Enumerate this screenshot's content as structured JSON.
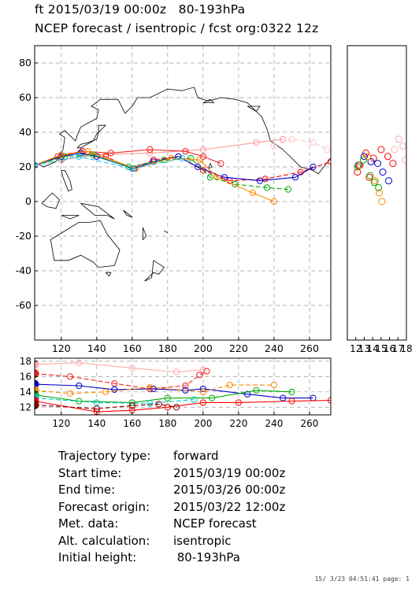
{
  "header": {
    "line1": "ft 2015/03/19 00:00z   80-193hPa",
    "line2": "NCEP forecast / isentropic / fcst org:0322 12z"
  },
  "info": [
    {
      "key": "Trajectory type:",
      "value": "forward"
    },
    {
      "key": "Start time:",
      "value": "2015/03/19 00:00z"
    },
    {
      "key": "End time:",
      "value": "2015/03/26 00:00z"
    },
    {
      "key": "Forecast origin:",
      "value": "2015/03/22 12:00z"
    },
    {
      "key": "Met. data:",
      "value": "NCEP forecast"
    },
    {
      "key": "Alt. calculation:",
      "value": "isentropic"
    },
    {
      "key": "Initial height:",
      "value": " 80-193hPa"
    }
  ],
  "footer": "15/ 3/23 04:51:41 page: 1",
  "chart_data": [
    {
      "type": "line",
      "panel": "map",
      "xlim": [
        105,
        272
      ],
      "ylim": [
        -80,
        90
      ],
      "x_ticks": [
        120,
        140,
        160,
        180,
        200,
        220,
        240,
        260
      ],
      "y_ticks": [
        80,
        60,
        40,
        20,
        0,
        -20,
        -40,
        -60
      ],
      "grid": true,
      "series": [
        {
          "color": "#ff9999",
          "x": [
            105,
            120,
            140,
            170,
            200,
            230,
            245
          ],
          "y": [
            21,
            24,
            27,
            28,
            30,
            34,
            36
          ]
        },
        {
          "color": "#ffc8c8",
          "x": [
            240,
            250,
            262,
            270
          ],
          "y": [
            32,
            36,
            34,
            30
          ]
        },
        {
          "color": "#ee2222",
          "x": [
            105,
            118,
            132,
            148,
            170,
            190,
            200,
            210
          ],
          "y": [
            21,
            26,
            29,
            28,
            30,
            29,
            26,
            22
          ]
        },
        {
          "color": "#ff0000",
          "x": [
            105,
            120,
            132,
            145,
            160,
            172,
            186,
            200,
            215,
            235,
            255,
            272
          ],
          "y": [
            21,
            27,
            29,
            26,
            19,
            24,
            26,
            18,
            12,
            13,
            17,
            23
          ]
        },
        {
          "color": "#0000cc",
          "x": [
            105,
            120,
            131,
            140,
            161,
            172,
            186,
            197,
            212,
            232,
            252,
            262
          ],
          "y": [
            21,
            26,
            28,
            26,
            19,
            23,
            26,
            20,
            14,
            12,
            14,
            20
          ]
        },
        {
          "color": "#00aa00",
          "x": [
            105,
            122,
            138,
            158,
            178,
            193,
            204,
            218,
            236,
            248
          ],
          "y": [
            21,
            26,
            27,
            20,
            24,
            25,
            14,
            10,
            8,
            7
          ]
        },
        {
          "color": "#ff8800",
          "x": [
            105,
            120,
            135,
            162,
            182,
            198,
            208,
            228,
            240
          ],
          "y": [
            21,
            27,
            29,
            19,
            25,
            24,
            14,
            5,
            0
          ]
        },
        {
          "color": "#00ccff",
          "x": [
            105,
            130,
            160,
            188
          ],
          "y": [
            21,
            26,
            19,
            25
          ]
        }
      ]
    },
    {
      "type": "scatter",
      "panel": "side",
      "xlim": [
        11,
        18
      ],
      "ylim": [
        -80,
        90
      ],
      "x_ticks": [
        12,
        13,
        14,
        15,
        16,
        17,
        18
      ],
      "series": [
        {
          "color": "#ff0000",
          "x": [
            12.5,
            13.2,
            14.1,
            15.0,
            15.8,
            16.4,
            13.6,
            12.2
          ],
          "y": [
            21,
            28,
            25,
            30,
            26,
            22,
            14,
            17
          ]
        },
        {
          "color": "#0000cc",
          "x": [
            12.3,
            13.0,
            13.8,
            14.6,
            15.2,
            15.9
          ],
          "y": [
            21,
            26,
            23,
            22,
            17,
            12
          ]
        },
        {
          "color": "#00aa00",
          "x": [
            12.2,
            12.9,
            13.7,
            14.2,
            14.7
          ],
          "y": [
            20,
            24,
            15,
            11,
            8
          ]
        },
        {
          "color": "#ff8800",
          "x": [
            12.4,
            13.4,
            14.3,
            14.8,
            15.1
          ],
          "y": [
            21,
            26,
            12,
            5,
            0
          ]
        },
        {
          "color": "#ffaaaa",
          "x": [
            16.6,
            17.1,
            17.6,
            17.9
          ],
          "y": [
            30,
            36,
            32,
            24
          ]
        }
      ]
    },
    {
      "type": "line",
      "panel": "height",
      "xlim": [
        105,
        272
      ],
      "ylim": [
        11,
        18.4
      ],
      "x_ticks": [
        120,
        140,
        160,
        180,
        200,
        220,
        240,
        260
      ],
      "y_ticks": [
        12,
        14,
        16,
        18
      ],
      "grid": true,
      "series": [
        {
          "color": "#ffaaaa",
          "x": [
            105,
            130,
            160,
            185,
            200
          ],
          "y": [
            17.6,
            17.8,
            17.1,
            16.6,
            16.9
          ]
        },
        {
          "color": "#ee2222",
          "x": [
            105,
            125,
            150,
            170,
            190,
            198,
            202
          ],
          "y": [
            16.4,
            16.0,
            15.1,
            14.4,
            14.8,
            16.2,
            16.7
          ]
        },
        {
          "color": "#0000cc",
          "x": [
            105,
            130,
            150,
            172,
            190,
            200,
            225,
            245,
            262
          ],
          "y": [
            15.0,
            14.8,
            14.3,
            14.4,
            14.2,
            14.4,
            13.7,
            13.2,
            13.2
          ]
        },
        {
          "color": "#ff8800",
          "x": [
            105,
            125,
            145,
            170,
            200,
            215,
            240
          ],
          "y": [
            14.2,
            13.8,
            14.0,
            14.6,
            14.0,
            14.9,
            14.9
          ]
        },
        {
          "color": "#00aa00",
          "x": [
            105,
            130,
            160,
            180,
            205,
            230,
            250
          ],
          "y": [
            13.6,
            12.8,
            12.6,
            13.2,
            13.2,
            14.2,
            14.0
          ]
        },
        {
          "color": "#00cccc",
          "x": [
            105,
            140,
            170,
            195
          ],
          "y": [
            13.2,
            12.6,
            12.5,
            13.0
          ]
        },
        {
          "color": "#ff0000",
          "x": [
            105,
            140,
            160,
            180,
            200,
            220,
            250,
            272
          ],
          "y": [
            12.8,
            11.4,
            11.6,
            12.0,
            12.6,
            12.6,
            12.8,
            12.9
          ]
        },
        {
          "color": "#880000",
          "x": [
            105,
            140,
            160,
            175,
            185
          ],
          "y": [
            12.3,
            11.8,
            12.2,
            12.4,
            12.0
          ]
        }
      ]
    }
  ]
}
